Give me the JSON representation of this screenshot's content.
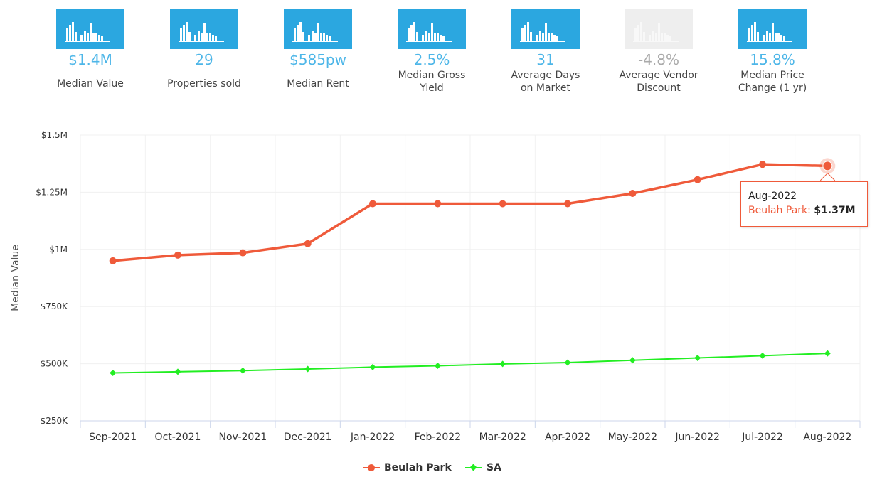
{
  "stats": [
    {
      "value": "$1.4M",
      "label1": "Median Value",
      "label2": "",
      "muted": false
    },
    {
      "value": "29",
      "label1": "Properties sold",
      "label2": "",
      "muted": false
    },
    {
      "value": "$585pw",
      "label1": "Median Rent",
      "label2": "",
      "muted": false
    },
    {
      "value": "2.5%",
      "label1": "Median Gross",
      "label2": "Yield",
      "muted": false
    },
    {
      "value": "31",
      "label1": "Average Days",
      "label2": "on Market",
      "muted": false
    },
    {
      "value": "-4.8%",
      "label1": "Average Vendor",
      "label2": "Discount",
      "muted": true
    },
    {
      "value": "15.8%",
      "label1": "Median Price",
      "label2": "Change (1 yr)",
      "muted": false
    }
  ],
  "colors": {
    "accent": "#4db6e8",
    "tile": "#2ba7e0",
    "tile_muted": "#eeeeee",
    "series1": "#ef5a3a",
    "series2": "#22ee22"
  },
  "tooltip": {
    "date": "Aug-2022",
    "series": "Beulah Park",
    "value": "$1.37M"
  },
  "chart_data": {
    "type": "line",
    "ylabel": "Median Value",
    "ylim": [
      250000,
      1500000
    ],
    "yticks": [
      250000,
      500000,
      750000,
      1000000,
      1250000,
      1500000
    ],
    "ytick_labels": [
      "$250K",
      "$500K",
      "$750K",
      "$1M",
      "$1.25M",
      "$1.5M"
    ],
    "categories": [
      "Sep-2021",
      "Oct-2021",
      "Nov-2021",
      "Dec-2021",
      "Jan-2022",
      "Feb-2022",
      "Mar-2022",
      "Apr-2022",
      "May-2022",
      "Jun-2022",
      "Jul-2022",
      "Aug-2022"
    ],
    "series": [
      {
        "name": "Beulah Park",
        "marker": "circle",
        "values": [
          950000,
          975000,
          985000,
          1025000,
          1200000,
          1200000,
          1200000,
          1200000,
          1245000,
          1305000,
          1372000,
          1365000
        ]
      },
      {
        "name": "SA",
        "marker": "diamond",
        "values": [
          460000,
          465000,
          470000,
          477000,
          485000,
          491000,
          499000,
          505000,
          515000,
          525000,
          535000,
          545000
        ]
      }
    ]
  }
}
